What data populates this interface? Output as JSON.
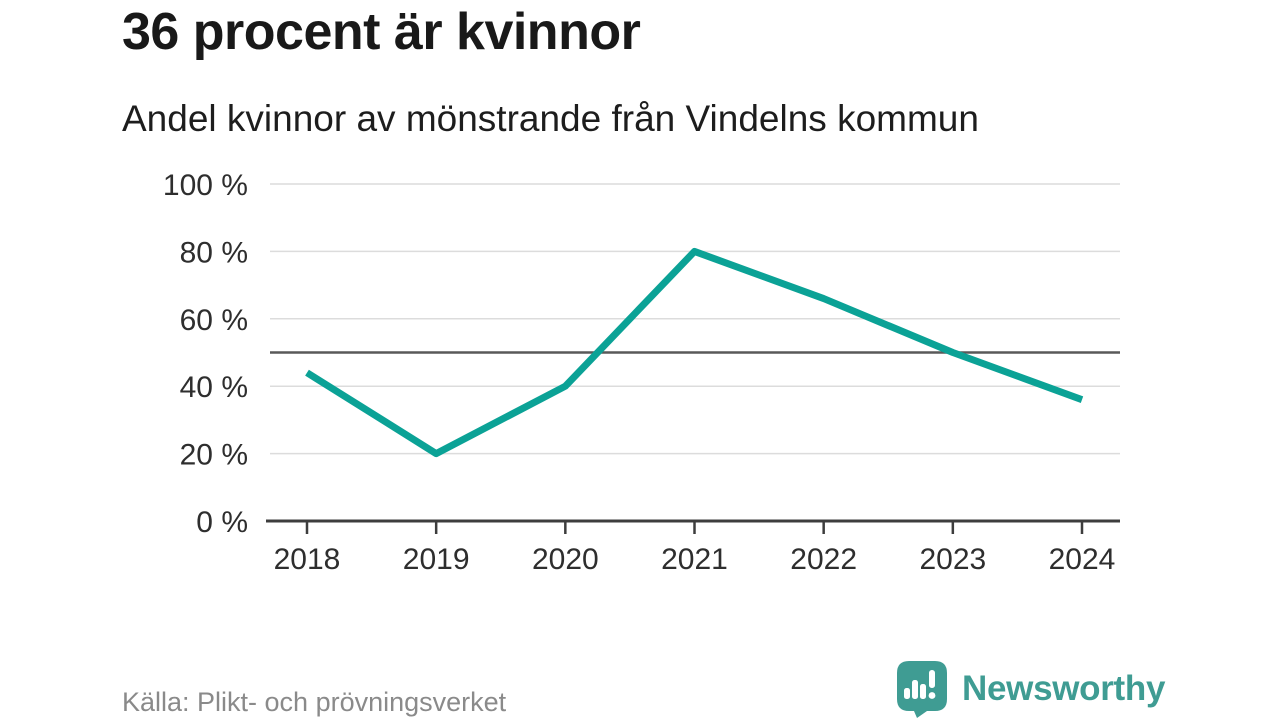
{
  "chart_data": {
    "type": "line",
    "title": "36 procent är kvinnor",
    "subtitle": "Andel kvinnor av mönstrande från Vindelns kommun",
    "categories": [
      "2018",
      "2019",
      "2020",
      "2021",
      "2022",
      "2023",
      "2024"
    ],
    "series": [
      {
        "name": "Andel kvinnor (%)",
        "values": [
          44,
          20,
          40,
          80,
          66,
          50,
          36
        ]
      }
    ],
    "ylim": [
      0,
      100
    ],
    "yticks": [
      {
        "value": 0,
        "label": "0 %"
      },
      {
        "value": 20,
        "label": "20 %"
      },
      {
        "value": 40,
        "label": "40 %"
      },
      {
        "value": 60,
        "label": "60 %"
      },
      {
        "value": 80,
        "label": "80 %"
      },
      {
        "value": 100,
        "label": "100 %"
      }
    ],
    "reference_line": {
      "value": 50
    },
    "grid": true,
    "legend": false
  },
  "footer": {
    "source": "Källa: Plikt- och prövningsverket",
    "brand": "Newsworthy"
  },
  "colors": {
    "line": "#0ba296",
    "gridline": "#dcdcdc",
    "reference_line": "#595959",
    "axis": "#3d3d3d",
    "tick_text": "#2e2e2e",
    "logo_teal": "#3f9c93",
    "logo_glyph": "#ffffff"
  }
}
